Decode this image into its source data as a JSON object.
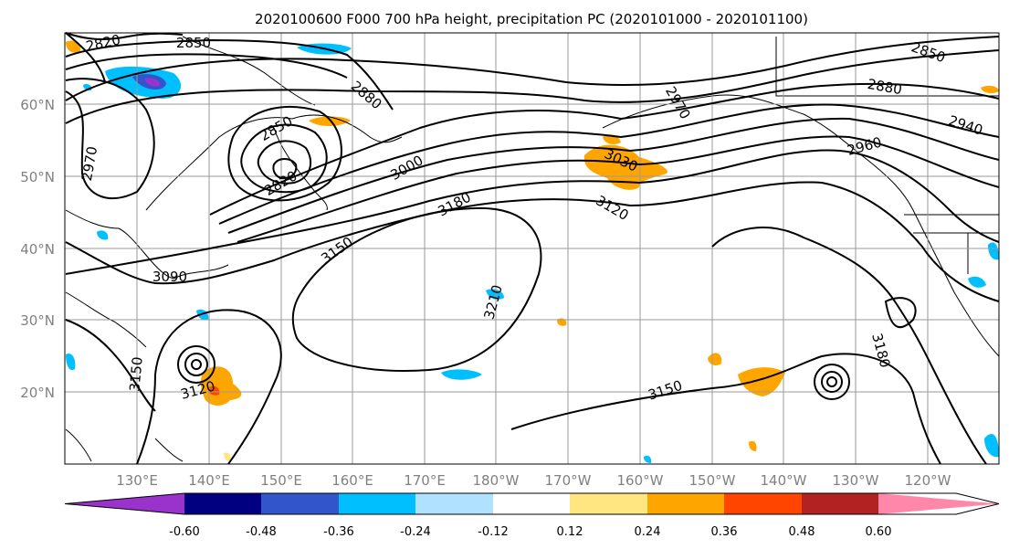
{
  "title": "2020100600 F000 700 hPa height, precipitation PC (2020101000 - 2020101100)",
  "map": {
    "lat_labels": [
      "60°N",
      "50°N",
      "40°N",
      "30°N",
      "20°N"
    ],
    "lon_labels": [
      "130°E",
      "140°E",
      "150°E",
      "160°E",
      "170°E",
      "180°W",
      "170°W",
      "160°W",
      "150°W",
      "140°W",
      "130°W",
      "120°W"
    ],
    "contour_labels": [
      "2820",
      "2850",
      "2850",
      "2880",
      "2850",
      "2880",
      "2970",
      "2970",
      "2820",
      "3000",
      "3030",
      "2940",
      "2960",
      "3180",
      "3120",
      "3150",
      "3090",
      "3210",
      "3150",
      "3120",
      "3150",
      "3180"
    ]
  },
  "colorbar": {
    "ticks": [
      "-0.60",
      "-0.48",
      "-0.36",
      "-0.24",
      "-0.12",
      "0.12",
      "0.24",
      "0.36",
      "0.48",
      "0.60"
    ],
    "colors": [
      "#9933cc",
      "#000080",
      "#3355cc",
      "#00bfff",
      "#b0e2ff",
      "#ffffff",
      "#ffe680",
      "#ffa500",
      "#ff4500",
      "#b22222",
      "#ff88aa"
    ]
  },
  "colors": {
    "neg_light": "#b0e2ff",
    "neg_mid": "#00bfff",
    "neg_strong": "#3355cc",
    "neg_extreme": "#9933cc",
    "pos_light": "#ffe680",
    "pos_mid": "#ffa500",
    "pos_strong": "#ff4500"
  }
}
